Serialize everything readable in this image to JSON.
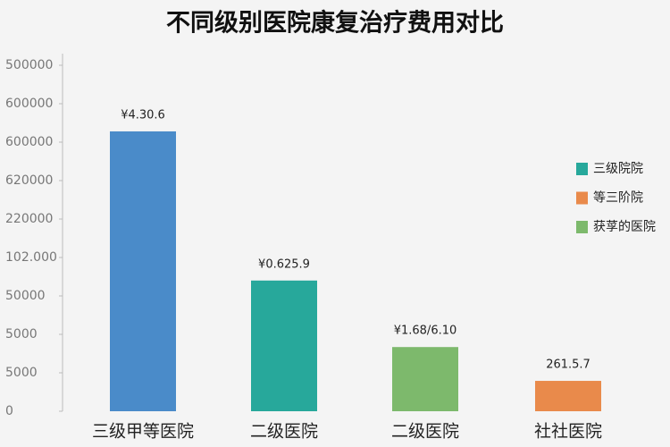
{
  "chart_data": {
    "type": "bar",
    "title": "不同级别医院康复治疗费用对比",
    "categories": [
      "三级甲等医院",
      "二级医院",
      "二级医院",
      "社社医院"
    ],
    "values": [
      7.28,
      3.4,
      1.67,
      0.79
    ],
    "value_labels": [
      "¥4.30.6",
      "¥0.625.9",
      "¥1.68/6.10",
      "261.5.7"
    ],
    "colors": [
      "#4a8bc9",
      "#27a89b",
      "#7db96c",
      "#e98a4b"
    ],
    "ylim": [
      0,
      9
    ],
    "yticks": [
      {
        "value": 0,
        "label": "0"
      },
      {
        "value": 1,
        "label": "5000"
      },
      {
        "value": 2,
        "label": "5000"
      },
      {
        "value": 3,
        "label": "50000"
      },
      {
        "value": 4,
        "label": "102.000"
      },
      {
        "value": 5,
        "label": "220000"
      },
      {
        "value": 6,
        "label": "620000"
      },
      {
        "value": 7,
        "label": "600000"
      },
      {
        "value": 8,
        "label": "600000"
      },
      {
        "value": 9,
        "label": "500000"
      }
    ],
    "legend": [
      {
        "name": "三级院院",
        "color": "#27a89b"
      },
      {
        "name": "等三阶院",
        "color": "#e98a4b"
      },
      {
        "name": "获莩的医院",
        "color": "#7db96c"
      }
    ]
  }
}
